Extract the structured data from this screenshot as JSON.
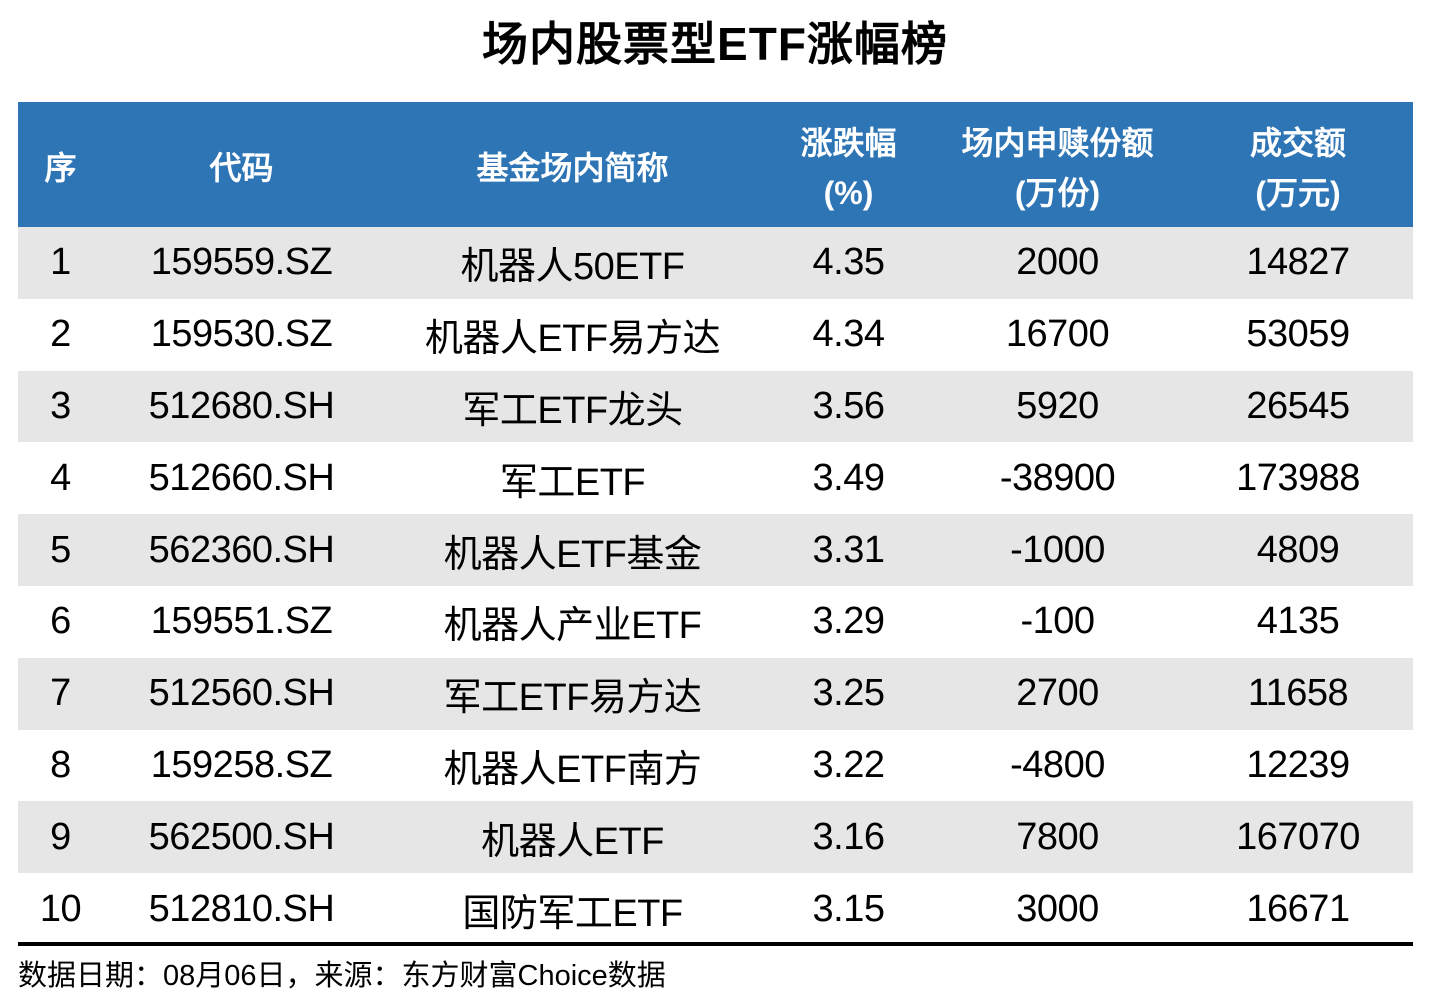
{
  "title": "场内股票型ETF涨幅榜",
  "colors": {
    "header_bg": "#2E75B6",
    "band_bg": "#E6E6E6",
    "text": "#000000"
  },
  "table": {
    "columns": [
      {
        "label": "序",
        "sub": ""
      },
      {
        "label": "代码",
        "sub": ""
      },
      {
        "label": "基金场内简称",
        "sub": ""
      },
      {
        "label": "涨跌幅",
        "sub": "(%)"
      },
      {
        "label": "场内申赎份额",
        "sub": "(万份)"
      },
      {
        "label": "成交额",
        "sub": "(万元)"
      }
    ],
    "rows": [
      [
        "1",
        "159559.SZ",
        "机器人50ETF",
        "4.35",
        "2000",
        "14827"
      ],
      [
        "2",
        "159530.SZ",
        "机器人ETF易方达",
        "4.34",
        "16700",
        "53059"
      ],
      [
        "3",
        "512680.SH",
        "军工ETF龙头",
        "3.56",
        "5920",
        "26545"
      ],
      [
        "4",
        "512660.SH",
        "军工ETF",
        "3.49",
        "-38900",
        "173988"
      ],
      [
        "5",
        "562360.SH",
        "机器人ETF基金",
        "3.31",
        "-1000",
        "4809"
      ],
      [
        "6",
        "159551.SZ",
        "机器人产业ETF",
        "3.29",
        "-100",
        "4135"
      ],
      [
        "7",
        "512560.SH",
        "军工ETF易方达",
        "3.25",
        "2700",
        "11658"
      ],
      [
        "8",
        "159258.SZ",
        "机器人ETF南方",
        "3.22",
        "-4800",
        "12239"
      ],
      [
        "9",
        "562500.SH",
        "机器人ETF",
        "3.16",
        "7800",
        "167070"
      ],
      [
        "10",
        "512810.SH",
        "国防军工ETF",
        "3.15",
        "3000",
        "16671"
      ]
    ]
  },
  "footer": {
    "text": "数据日期：08月06日，来源：东方财富Choice数据"
  },
  "chart_data": {
    "type": "table",
    "title": "场内股票型ETF涨幅榜",
    "columns": [
      "序",
      "代码",
      "基金场内简称",
      "涨跌幅(%)",
      "场内申赎份额(万份)",
      "成交额(万元)"
    ],
    "rows": [
      [
        1,
        "159559.SZ",
        "机器人50ETF",
        4.35,
        2000,
        14827
      ],
      [
        2,
        "159530.SZ",
        "机器人ETF易方达",
        4.34,
        16700,
        53059
      ],
      [
        3,
        "512680.SH",
        "军工ETF龙头",
        3.56,
        5920,
        26545
      ],
      [
        4,
        "512660.SH",
        "军工ETF",
        3.49,
        -38900,
        173988
      ],
      [
        5,
        "562360.SH",
        "机器人ETF基金",
        3.31,
        -1000,
        4809
      ],
      [
        6,
        "159551.SZ",
        "机器人产业ETF",
        3.29,
        -100,
        4135
      ],
      [
        7,
        "512560.SH",
        "军工ETF易方达",
        3.25,
        2700,
        11658
      ],
      [
        8,
        "159258.SZ",
        "机器人ETF南方",
        3.22,
        -4800,
        12239
      ],
      [
        9,
        "562500.SH",
        "机器人ETF",
        3.16,
        7800,
        167070
      ],
      [
        10,
        "512810.SH",
        "国防军工ETF",
        3.15,
        3000,
        16671
      ]
    ],
    "source_note": "数据日期：08月06日，来源：东方财富Choice数据",
    "layout_hints": {
      "header_bg": "#2E75B6",
      "banded_rows": true,
      "band_color": "#E6E6E6",
      "banded_row_indices": [
        1,
        3,
        5,
        7,
        9
      ],
      "cell_alignment": "center"
    }
  }
}
